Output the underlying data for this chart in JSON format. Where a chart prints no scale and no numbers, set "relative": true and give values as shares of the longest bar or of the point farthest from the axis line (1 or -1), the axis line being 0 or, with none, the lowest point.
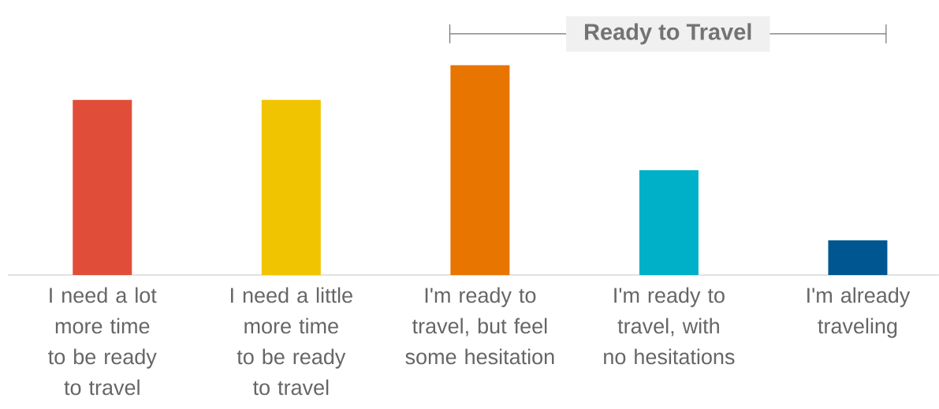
{
  "chart_data": {
    "type": "bar",
    "relative": true,
    "categories": [
      "I need a lot more time to be ready to travel",
      "I need a little more time to be ready to travel",
      "I'm ready to travel, but feel some hesitation",
      "I'm ready to travel, with no hesitations",
      "I'm already traveling"
    ],
    "values": [
      0.835,
      0.835,
      1,
      0.5,
      0.165
    ],
    "colors": [
      "#e04e39",
      "#f0c400",
      "#e87500",
      "#00b0c8",
      "#005691"
    ],
    "annotations": [
      "Ready to Travel"
    ]
  }
}
